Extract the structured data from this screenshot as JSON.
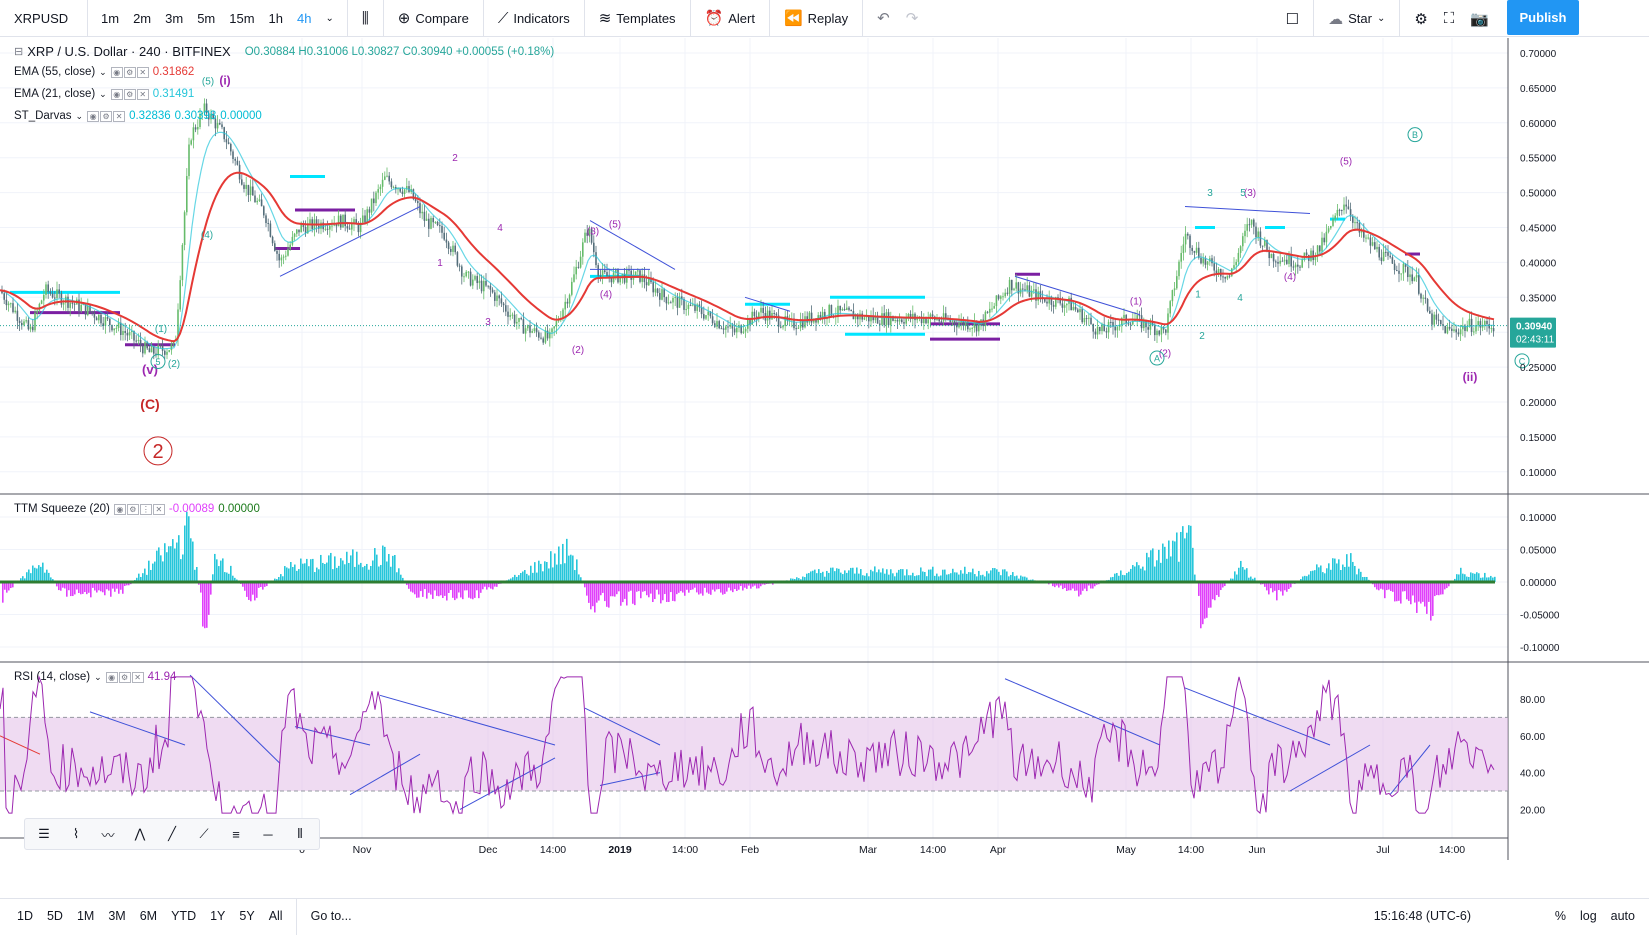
{
  "toolbar": {
    "symbol": "XRPUSD",
    "timeframes": [
      "1m",
      "2m",
      "3m",
      "5m",
      "15m",
      "1h",
      "4h"
    ],
    "active_timeframe": "4h",
    "compare_label": "Compare",
    "indicators_label": "Indicators",
    "templates_label": "Templates",
    "alert_label": "Alert",
    "replay_label": "Replay",
    "star_label": "Star",
    "publish_label": "Publish"
  },
  "main_legend": {
    "title": "XRP / U.S. Dollar · 240 · BITFINEX",
    "ohlc": "O0.30884  H0.31006  L0.30827  C0.30940  +0.00055 (+0.18%)",
    "ema55_name": "EMA (55, close)",
    "ema55_value": "0.31862",
    "ema21_name": "EMA (21, close)",
    "ema21_value": "0.31491",
    "darvas_name": "ST_Darvas",
    "darvas_v1": "0.32836",
    "darvas_v2": "0.30398",
    "darvas_v3": "0.00000"
  },
  "ttm_legend": {
    "name": "TTM Squeeze (20)",
    "v1": "-0.00089",
    "v2": "0.00000"
  },
  "rsi_legend": {
    "name": "RSI (14, close)",
    "value": "41.94"
  },
  "price_axis": {
    "ticks": [
      "0.70000",
      "0.65000",
      "0.60000",
      "0.55000",
      "0.50000",
      "0.45000",
      "0.40000",
      "0.35000",
      "0.30000",
      "0.25000",
      "0.20000",
      "0.15000",
      "0.10000"
    ],
    "current_price": "0.30940",
    "countdown": "02:43:11"
  },
  "ttm_axis": {
    "ticks": [
      "0.10000",
      "0.05000",
      "0.00000",
      "-0.05000",
      "-0.10000"
    ]
  },
  "rsi_axis": {
    "ticks": [
      "80.00",
      "60.00",
      "40.00",
      "20.00"
    ]
  },
  "time_axis": {
    "labels": [
      "0",
      "Nov",
      "Dec",
      "14:00",
      "2019",
      "14:00",
      "Feb",
      "Mar",
      "14:00",
      "Apr",
      "May",
      "14:00",
      "Jun",
      "Jul",
      "14:00"
    ]
  },
  "wave_labels": {
    "v": "(v)",
    "C": "(C)",
    "two": "2",
    "i": "(i)",
    "ii": "(ii)",
    "five_circle": "5",
    "A": "A",
    "B": "B",
    "C_circle": "C",
    "p1": "(1)",
    "p2": "(2)",
    "p3": "(3)",
    "p4": "(4)",
    "p5": "(5)",
    "n1": "1",
    "n2": "2",
    "n3": "3",
    "n4": "4",
    "n5": "5"
  },
  "bottombar": {
    "ranges": [
      "1D",
      "5D",
      "1M",
      "3M",
      "6M",
      "YTD",
      "1Y",
      "5Y",
      "All"
    ],
    "goto_label": "Go to...",
    "clock": "15:16:48 (UTC-6)",
    "percent_label": "%",
    "log_label": "log",
    "auto_label": "auto"
  },
  "colors": {
    "ema55": "#e53935",
    "ema21": "#26c6da",
    "darvas_top": "#00e5ff",
    "darvas_bottom": "#7b1fa2",
    "wave_purple": "#9c27b0",
    "wave_cyan": "#26a69a",
    "wave_red": "#c62828",
    "rsi": "#9c27b0",
    "rsi_band": "#e1bee7",
    "trendline": "#3f51d8",
    "ttm_pos": "#26c6da",
    "ttm_neg": "#e040fb",
    "accent": "#2196f3"
  }
}
